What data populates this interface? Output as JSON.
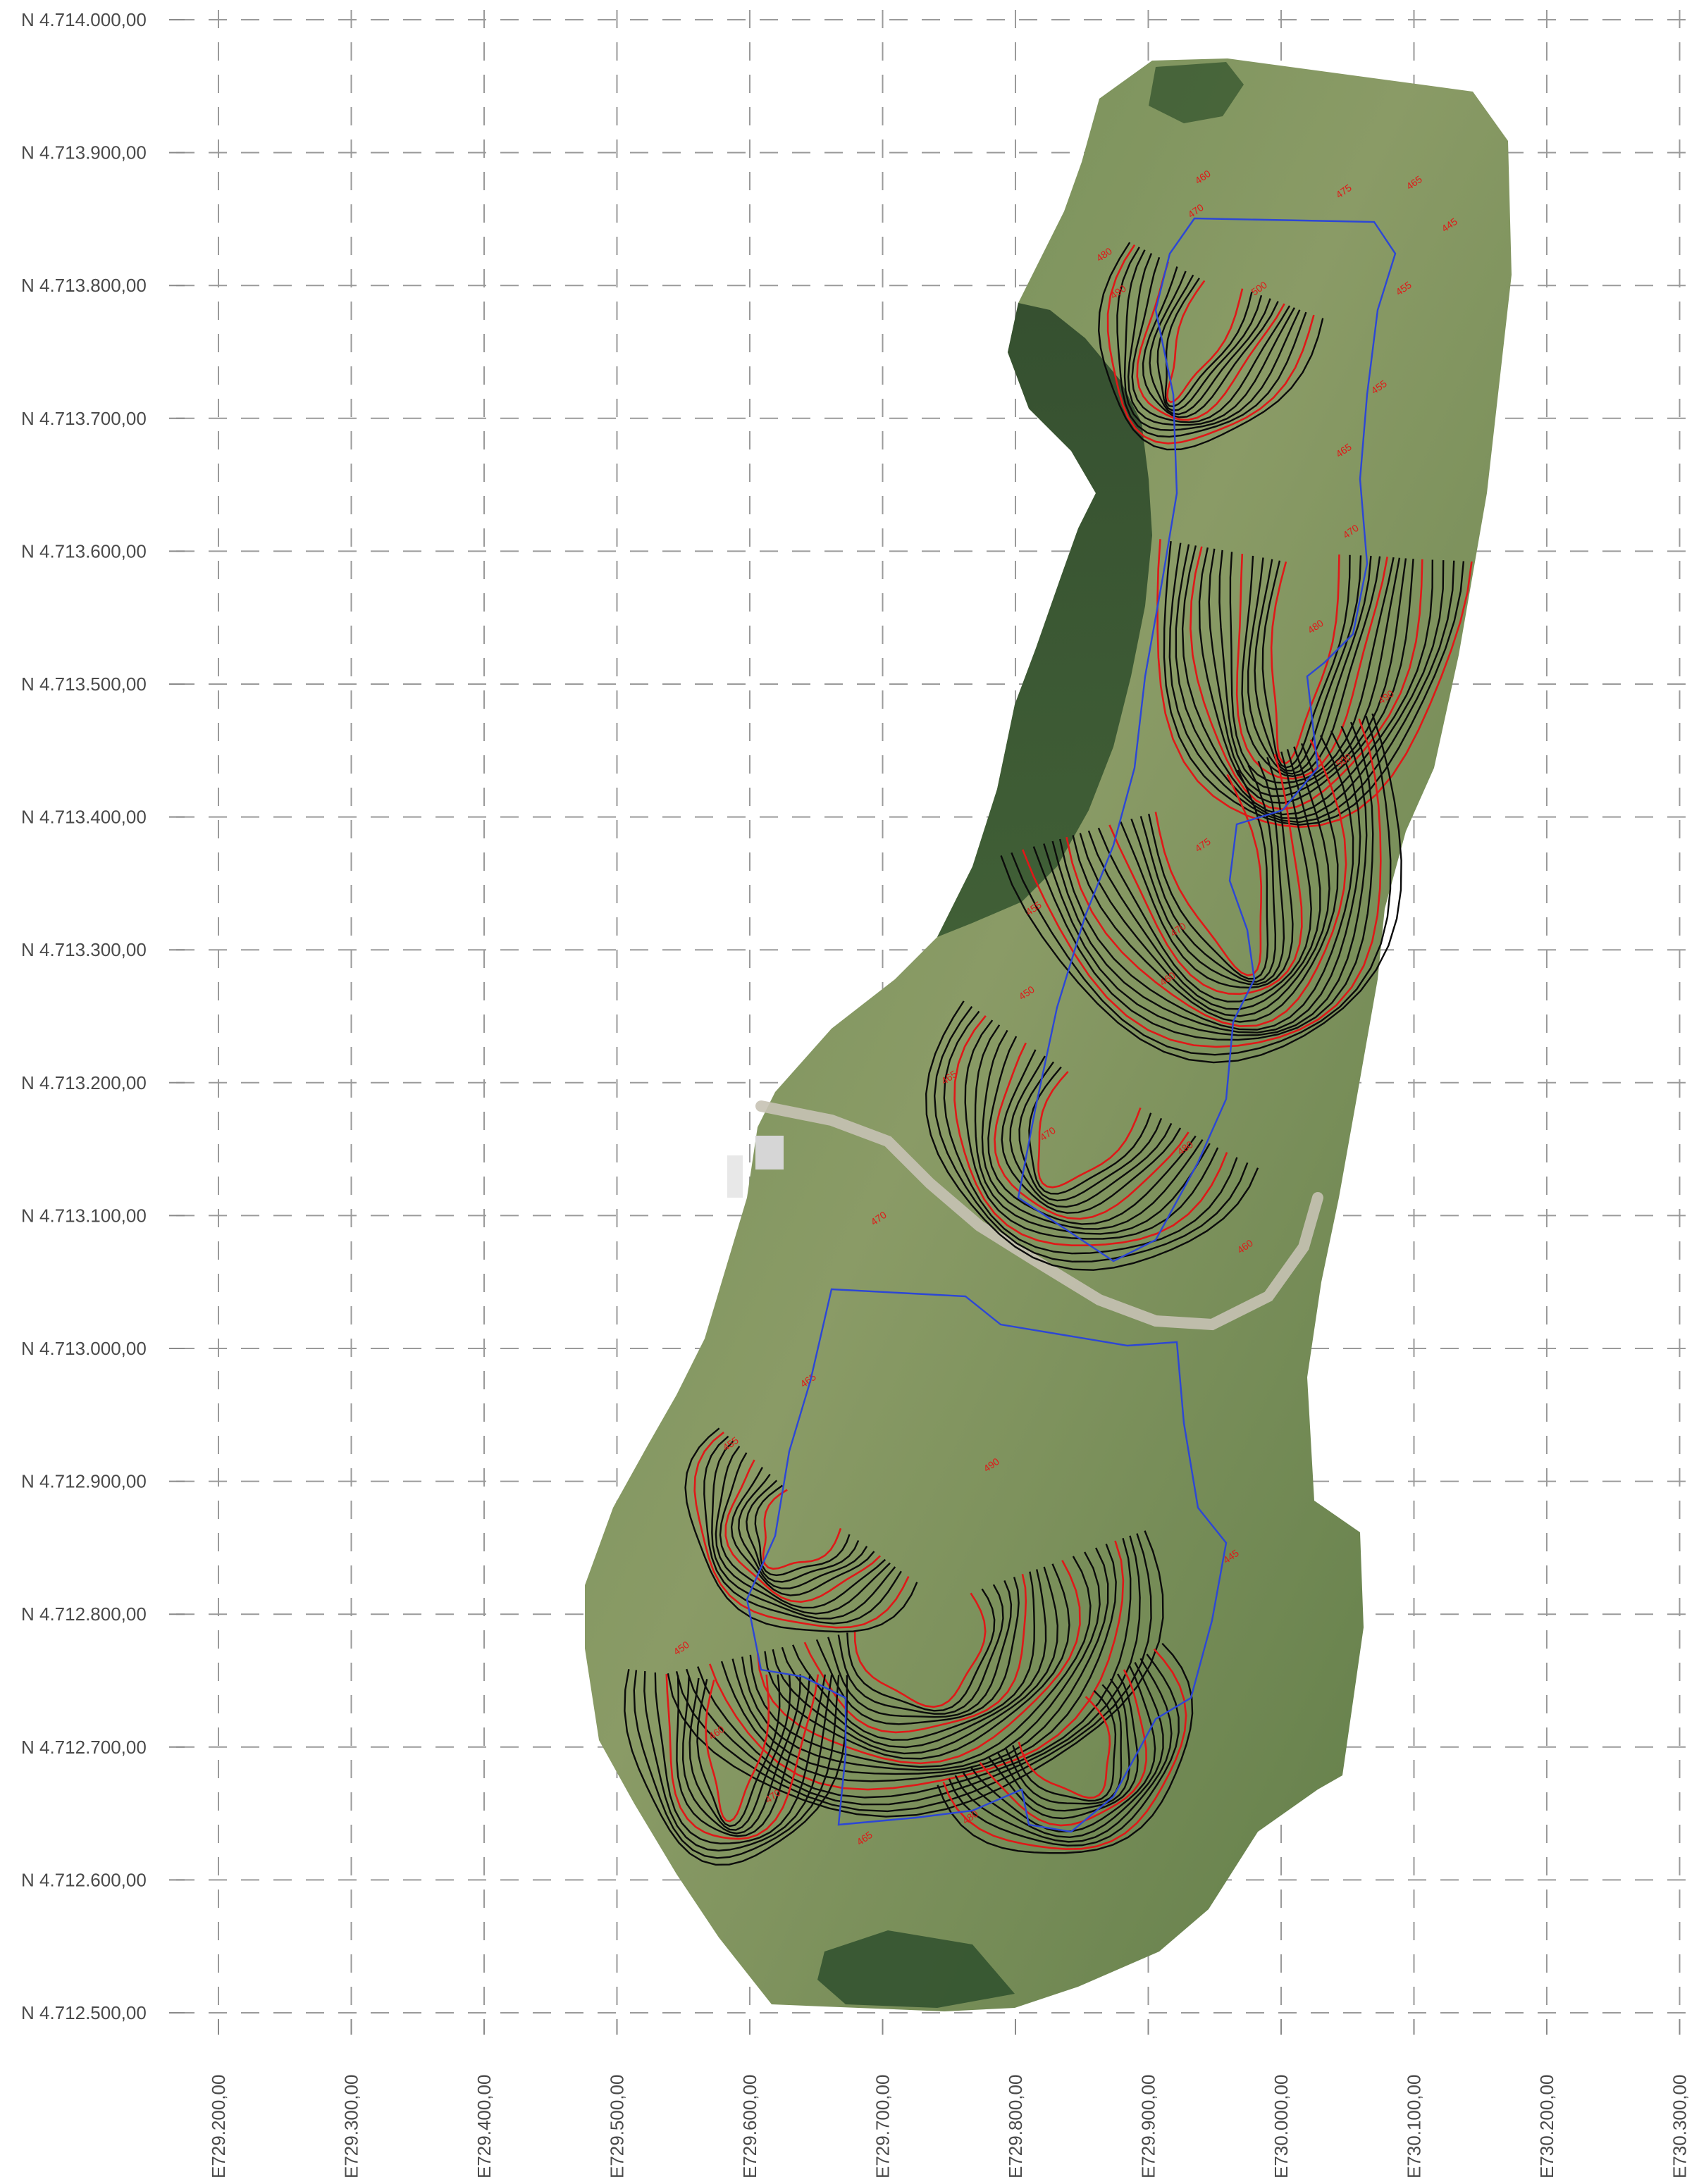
{
  "map": {
    "northing_labels": [
      "N 4.714.000,00",
      "N 4.713.900,00",
      "N 4.713.800,00",
      "N 4.713.700,00",
      "N 4.713.600,00",
      "N 4.713.500,00",
      "N 4.713.400,00",
      "N 4.713.300,00",
      "N 4.713.200,00",
      "N 4.713.100,00",
      "N 4.713.000,00",
      "N 4.712.900,00",
      "N 4.712.800,00",
      "N 4.712.700,00",
      "N 4.712.600,00",
      "N 4.712.500,00"
    ],
    "easting_labels": [
      "E729.200,00",
      "E729.300,00",
      "E729.400,00",
      "E729.500,00",
      "E729.600,00",
      "E729.700,00",
      "E729.800,00",
      "E729.900,00",
      "E730.000,00",
      "E730.100,00",
      "E730.200,00",
      "E730.300,00"
    ],
    "contour_labels": [
      "460",
      "470",
      "480",
      "490",
      "500",
      "475",
      "465",
      "445",
      "455",
      "455",
      "465",
      "470",
      "480",
      "490",
      "500",
      "475",
      "470",
      "460",
      "455",
      "450",
      "465",
      "470",
      "480",
      "460",
      "470",
      "465",
      "455",
      "450",
      "460",
      "470",
      "465",
      "480",
      "490",
      "445"
    ],
    "colors": {
      "contour_index": "#e01818",
      "contour_intermediate": "#0b0b0b",
      "boundary": "#2c46d6",
      "grid": "#9a9a9a",
      "label": "#4a4a4a"
    },
    "features": [
      "aerial-orthophoto",
      "contour-lines",
      "parcel-boundary",
      "farm-road",
      "forest"
    ]
  }
}
